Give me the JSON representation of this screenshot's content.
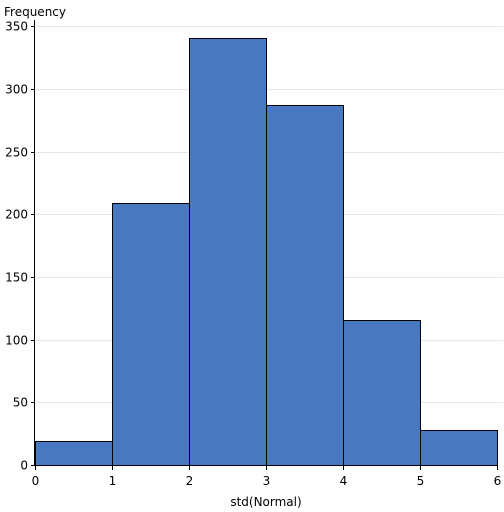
{
  "chart_data": {
    "type": "bar",
    "ylabel": "Frequency",
    "xlabel": "std(Normal)",
    "bins": [
      {
        "x0": 0,
        "x1": 1,
        "value": 19
      },
      {
        "x0": 1,
        "x1": 2,
        "value": 209
      },
      {
        "x0": 2,
        "x1": 3,
        "value": 341
      },
      {
        "x0": 3,
        "x1": 4,
        "value": 287
      },
      {
        "x0": 4,
        "x1": 5,
        "value": 116
      },
      {
        "x0": 5,
        "x1": 6,
        "value": 28
      }
    ],
    "xlim": [
      0,
      6
    ],
    "ylim": [
      0,
      355
    ],
    "xticks": [
      0,
      1,
      2,
      3,
      4,
      5,
      6
    ],
    "yticks": [
      0,
      50,
      100,
      150,
      200,
      250,
      300,
      350
    ],
    "grid": true,
    "colors": {
      "bar": "#4879c0",
      "edge": "#000000",
      "grid": "#e6e6e6"
    }
  }
}
